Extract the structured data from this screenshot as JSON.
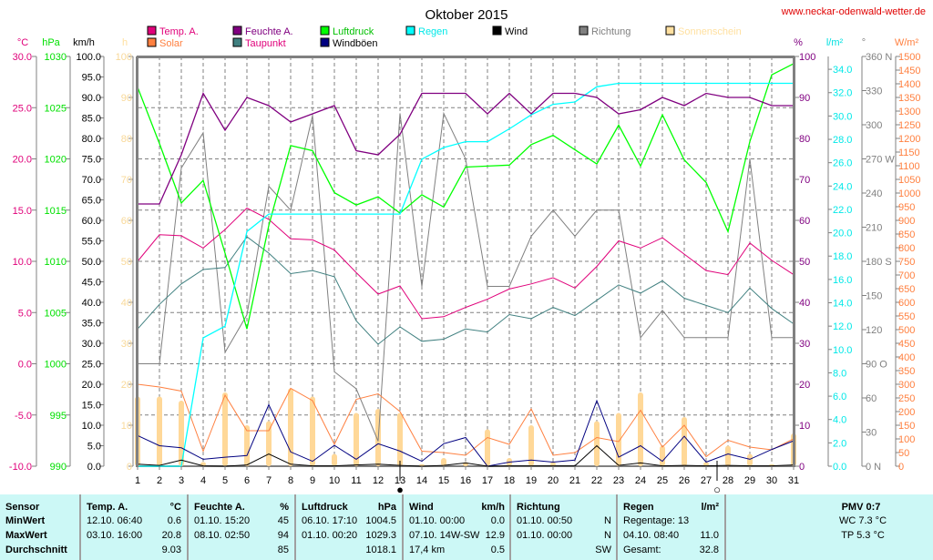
{
  "chart_data": {
    "type": "line",
    "title": "Oktober 2015",
    "watermark": "www.neckar-odenwald-wetter.de",
    "x": [
      1,
      2,
      3,
      4,
      5,
      6,
      7,
      8,
      9,
      10,
      11,
      12,
      13,
      14,
      15,
      16,
      17,
      18,
      19,
      20,
      21,
      22,
      23,
      24,
      25,
      26,
      27,
      28,
      29,
      30,
      31
    ],
    "xlabel": "",
    "grid": true,
    "legend": [
      {
        "name": "Temp. A.",
        "color": "#e0007a"
      },
      {
        "name": "Solar",
        "color": "#ff8040"
      },
      {
        "name": "Feuchte A.",
        "color": "#800080"
      },
      {
        "name": "Taupunkt",
        "color": "#408080"
      },
      {
        "name": "Luftdruck",
        "color": "#00ff00"
      },
      {
        "name": "Windböen",
        "color": "#000080"
      },
      {
        "name": "Regen",
        "color": "#00ffff"
      },
      {
        "name": "Wind",
        "color": "#000000"
      },
      {
        "name": "Richtung",
        "color": "#808080"
      },
      {
        "name": "Sonnenschein",
        "color": "#ffe0a0"
      }
    ],
    "axes": {
      "temp": {
        "unit": "°C",
        "min": -10,
        "max": 30,
        "ticks": [
          "30.0",
          "25.0",
          "20.0",
          "15.0",
          "10.0",
          "5.0",
          "0.0",
          "-5.0",
          "-10.0"
        ],
        "color": "#e0007a"
      },
      "pressure": {
        "unit": "hPa",
        "min": 990,
        "max": 1030,
        "ticks": [
          "1030",
          "1025",
          "1020",
          "1015",
          "1010",
          "1005",
          "1000",
          "995",
          "990"
        ],
        "color": "#00e000"
      },
      "wind": {
        "unit": "km/h",
        "min": 0,
        "max": 100,
        "ticks": [
          "100.0",
          "95.0",
          "90.0",
          "85.0",
          "80.0",
          "75.0",
          "70.0",
          "65.0",
          "60.0",
          "55.0",
          "50.0",
          "45.0",
          "40.0",
          "35.0",
          "30.0",
          "25.0",
          "20.0",
          "15.0",
          "10.0",
          "5.0",
          "0.0"
        ],
        "color": "#000000"
      },
      "sunshine": {
        "unit": "h",
        "min": 0,
        "max": 100,
        "ticks": [
          "100",
          "90",
          "80",
          "70",
          "60",
          "50",
          "40",
          "30",
          "20",
          "10",
          "0"
        ],
        "color": "#ffe0a0"
      },
      "humidity": {
        "unit": "%",
        "min": 0,
        "max": 100,
        "ticks": [
          "100",
          "90",
          "80",
          "70",
          "60",
          "50",
          "40",
          "30",
          "20",
          "10",
          "0"
        ],
        "color": "#800080"
      },
      "rain": {
        "unit": "l/m²",
        "min": 0,
        "max": 35.1,
        "ticks": [
          "34.0",
          "32.0",
          "30.0",
          "28.0",
          "26.0",
          "24.0",
          "22.0",
          "20.0",
          "18.0",
          "16.0",
          "14.0",
          "12.0",
          "10.0",
          "8.0",
          "6.0",
          "4.0",
          "2.0",
          "0.0"
        ],
        "color": "#00e0e0"
      },
      "direction": {
        "unit": "°",
        "min": 0,
        "max": 360,
        "ticks": [
          "360 N",
          "330",
          "300",
          "270 W",
          "240",
          "210",
          "180 S",
          "150",
          "120",
          "90  O",
          "60",
          "30",
          "0    N"
        ],
        "color": "#808080"
      },
      "solar": {
        "unit": "W/m²",
        "min": 0,
        "max": 1500,
        "ticks": [
          "1500",
          "1450",
          "1400",
          "1350",
          "1300",
          "1250",
          "1200",
          "1150",
          "1100",
          "1050",
          "1000",
          "950",
          "900",
          "850",
          "800",
          "750",
          "700",
          "650",
          "600",
          "550",
          "500",
          "450",
          "400",
          "350",
          "300",
          "250",
          "200",
          "150",
          "100",
          "50",
          "0"
        ],
        "color": "#ff8040"
      }
    },
    "series": [
      {
        "name": "Temp. A.",
        "axis": "temp",
        "values": [
          10.0,
          12.6,
          12.5,
          11.3,
          13.1,
          15.2,
          14.1,
          12.2,
          12.1,
          11.1,
          8.9,
          6.8,
          7.6,
          4.4,
          4.6,
          5.5,
          6.3,
          7.3,
          7.8,
          8.4,
          7.4,
          9.5,
          12.0,
          11.3,
          12.3,
          10.7,
          9.1,
          8.7,
          11.8,
          10.1,
          8.7
        ]
      },
      {
        "name": "Feuchte A.",
        "axis": "humidity",
        "values": [
          64,
          64,
          76,
          91,
          82,
          90,
          88,
          84,
          86,
          88,
          77,
          76,
          81,
          91,
          91,
          91,
          86,
          91,
          86,
          91,
          91,
          90,
          86,
          87,
          90,
          88,
          91,
          90,
          90,
          88,
          88
        ]
      },
      {
        "name": "Luftdruck",
        "axis": "pressure",
        "values": [
          1027.0,
          1021.5,
          1015.7,
          1017.9,
          1010.8,
          1003.4,
          1013.5,
          1021.3,
          1020.8,
          1016.7,
          1015.5,
          1016.3,
          1014.7,
          1016.5,
          1015.3,
          1019.2,
          1019.3,
          1019.4,
          1021.4,
          1022.3,
          1020.9,
          1019.5,
          1023.3,
          1019.3,
          1024.3,
          1019.9,
          1017.7,
          1012.9,
          1021.7,
          1028.2,
          1029.3
        ]
      },
      {
        "name": "Regen",
        "axis": "rain",
        "values": [
          0.0,
          0.0,
          0.0,
          11.0,
          12.0,
          20.1,
          21.6,
          21.6,
          21.6,
          21.6,
          21.6,
          21.6,
          21.6,
          26.3,
          27.3,
          27.8,
          27.8,
          28.9,
          30.1,
          31.0,
          31.2,
          32.5,
          32.8,
          32.8,
          32.8,
          32.8,
          32.8,
          32.8,
          32.8,
          32.8,
          32.8
        ]
      },
      {
        "name": "Taupunkt",
        "axis": "temp",
        "values": [
          3.4,
          5.8,
          7.8,
          9.2,
          9.4,
          12.4,
          10.8,
          8.8,
          9.1,
          8.5,
          4.2,
          1.9,
          3.6,
          2.2,
          2.4,
          3.4,
          3.1,
          4.8,
          4.4,
          5.5,
          4.7,
          6.2,
          7.7,
          6.9,
          8.1,
          6.4,
          5.7,
          5.0,
          7.4,
          5.4,
          3.9
        ]
      },
      {
        "name": "Richtung",
        "axis": "direction",
        "values": [
          90,
          90,
          262,
          293,
          100,
          133,
          246,
          225,
          308,
          83,
          68,
          22,
          310,
          158,
          310,
          270,
          158,
          158,
          202,
          225,
          202,
          225,
          225,
          113,
          137,
          113,
          113,
          113,
          270,
          113,
          113
        ]
      },
      {
        "name": "Solar",
        "axis": "solar",
        "values": [
          300,
          290,
          275,
          55,
          260,
          130,
          130,
          285,
          240,
          80,
          245,
          265,
          200,
          55,
          50,
          40,
          105,
          80,
          210,
          40,
          50,
          105,
          90,
          205,
          70,
          150,
          35,
          95,
          70,
          60,
          100
        ]
      },
      {
        "name": "Windböen",
        "axis": "wind",
        "values": [
          7.5,
          5.0,
          4.5,
          1.7,
          2.2,
          2.6,
          15.0,
          3.5,
          1.2,
          5.1,
          1.7,
          5.5,
          3.7,
          1.2,
          5.5,
          7.0,
          0.0,
          1.0,
          1.5,
          1.0,
          1.5,
          16.0,
          2.2,
          5.0,
          1.2,
          7.3,
          1.0,
          3.0,
          1.7,
          4.1,
          6.2
        ]
      },
      {
        "name": "Wind",
        "axis": "wind",
        "values": [
          0.5,
          0.2,
          1.5,
          0.1,
          0.0,
          0.3,
          3.0,
          0.5,
          0.1,
          0.1,
          0.3,
          0.5,
          0.2,
          0.0,
          0.2,
          0.8,
          0.0,
          0.1,
          0.1,
          0.1,
          0.1,
          5.0,
          0.2,
          0.8,
          0.1,
          0.2,
          0.1,
          0.2,
          0.1,
          0.1,
          0.3
        ]
      },
      {
        "name": "Sonnenschein",
        "axis": "sunshine",
        "type": "bar",
        "values": [
          17,
          17,
          16,
          1,
          18,
          10,
          11,
          19,
          17,
          3,
          13,
          14,
          13,
          0.5,
          2,
          1,
          9,
          2,
          10,
          1,
          0,
          11,
          13,
          18,
          5,
          12,
          1,
          5,
          3,
          0.5,
          8
        ]
      }
    ],
    "moon_phases": [
      {
        "day": 13,
        "phase": "new-moon",
        "symbol": "●"
      },
      {
        "day": 27.5,
        "phase": "full-moon",
        "symbol": "○"
      }
    ]
  },
  "stats": {
    "sensor": {
      "header": "Sensor",
      "rows": [
        "MinWert",
        "MaxWert",
        "Durchschnitt"
      ]
    },
    "temp": {
      "header": "Temp. A.",
      "unit": "°C",
      "min_time": "12.10.  06:40",
      "min_val": "0.6",
      "max_time": "03.10.  16:00",
      "max_val": "20.8",
      "avg": "9.03"
    },
    "humidity": {
      "header": "Feuchte A.",
      "unit": "%",
      "min_time": "01.10.  15:20",
      "min_val": "45",
      "max_time": "08.10.  02:50",
      "max_val": "94",
      "avg": "85"
    },
    "pressure": {
      "header": "Luftdruck",
      "unit": "hPa",
      "min_time": "06.10.  17:10",
      "min_val": "1004.5",
      "max_time": "01.10.  00:20",
      "max_val": "1029.3",
      "avg": "1018.1"
    },
    "wind": {
      "header": "Wind",
      "unit": "km/h",
      "min_time": "01.10.  00:00",
      "min_val": "0.0",
      "max_time": "07.10.  14W-SW",
      "max_val": "12.9",
      "avg_label": "17,4 km",
      "avg": "0.5"
    },
    "direction": {
      "header": "Richtung",
      "min_time": "01.10.  00:50",
      "min_val": "N",
      "max_time": "01.10.  00:00",
      "max_val": "N",
      "avg": "SW"
    },
    "rain": {
      "header": "Regen",
      "unit": "l/m²",
      "row1": "Regentage: 13",
      "max_time": "04.10.  08:40",
      "max_val": "11.0",
      "total_label": "Gesamt:",
      "total": "32.8"
    },
    "pmv": {
      "header": "PMV 0:7",
      "wc": "WC 7.3 °C",
      "tp": "TP 5.3 °C"
    }
  }
}
